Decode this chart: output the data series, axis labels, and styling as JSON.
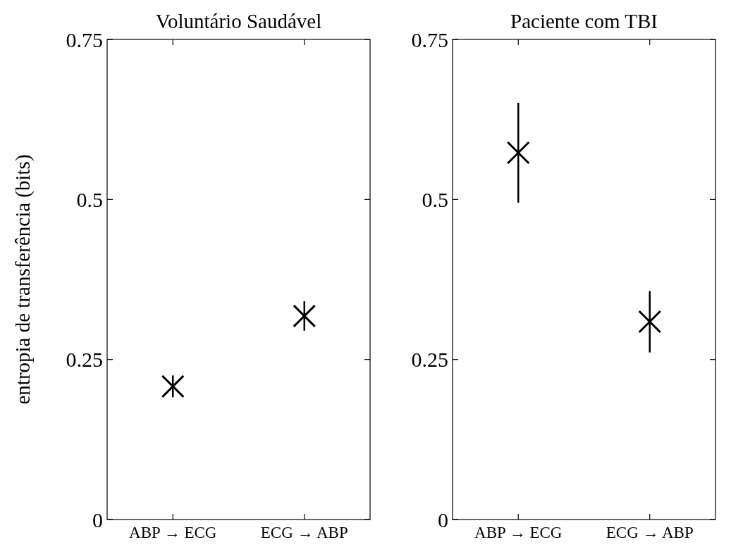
{
  "chart_data": [
    {
      "type": "scatter",
      "title": "Voluntário Saudável",
      "ylabel": "entropia de transferência (bits)",
      "categories": [
        "ABP → ECG",
        "ECG → ABP"
      ],
      "values": [
        0.208,
        0.318
      ],
      "errors": [
        0.017,
        0.023
      ],
      "color": "#000000",
      "marker": "cross",
      "ylim": [
        0,
        0.75
      ],
      "yticks": [
        0,
        0.25,
        0.5,
        0.75
      ]
    },
    {
      "type": "scatter",
      "title": "Paciente com TBI",
      "categories": [
        "ABP → ECG",
        "ECG → ABP"
      ],
      "values": [
        0.573,
        0.309
      ],
      "errors": [
        0.078,
        0.048
      ],
      "color": "#000000",
      "marker": "cross",
      "ylim": [
        0,
        0.75
      ],
      "yticks": [
        0,
        0.25,
        0.5,
        0.75
      ]
    }
  ]
}
